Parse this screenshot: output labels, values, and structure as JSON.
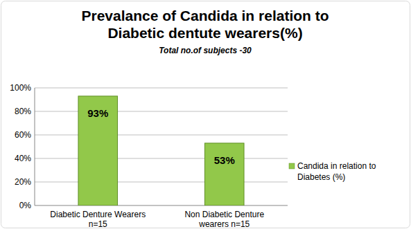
{
  "chart_data": {
    "type": "bar",
    "title": "Prevalance of Candida in relation to Diabetic dentute wearers(%)",
    "subtitle": "Total no.of subjects -30",
    "categories": [
      "Diabetic Denture Wearers\nn=15",
      "Non Diabetic Denture\nwearers n=15"
    ],
    "series": [
      {
        "name": "Candida in relation to Diabetes (%)",
        "color": "#92c84a",
        "values": [
          93,
          53
        ],
        "value_labels": [
          "93%",
          "53%"
        ]
      }
    ],
    "ylim": [
      0,
      100
    ],
    "yticks": [
      {
        "value": 0,
        "label": "0%"
      },
      {
        "value": 20,
        "label": "20%"
      },
      {
        "value": 40,
        "label": "40%"
      },
      {
        "value": 60,
        "label": "60%"
      },
      {
        "value": 80,
        "label": "80%"
      },
      {
        "value": 100,
        "label": "100%"
      }
    ],
    "grid": true,
    "legend": "right",
    "data_labels": true
  }
}
